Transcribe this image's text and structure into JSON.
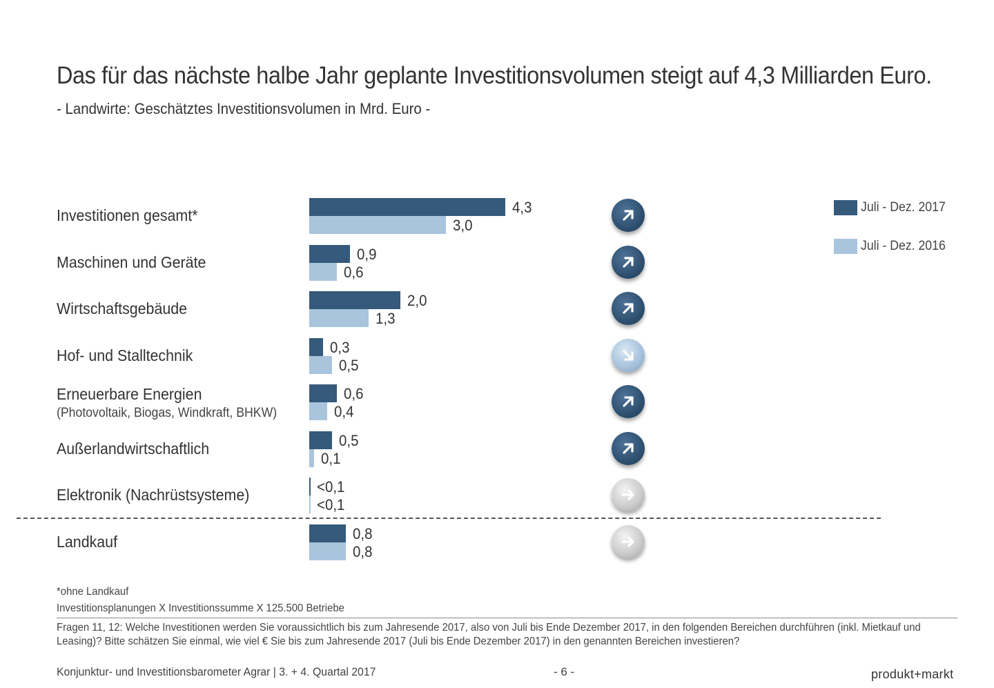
{
  "header": {
    "title": "Das für das nächste halbe Jahr geplante Investitionsvolumen steigt auf 4,3 Milliarden Euro.",
    "subtitle": "- Landwirte: Geschätztes Investitionsvolumen in Mrd. Euro -"
  },
  "chart_data": {
    "type": "bar",
    "orientation": "horizontal",
    "title": "Das für das nächste halbe Jahr geplante Investitionsvolumen steigt auf 4,3 Milliarden Euro.",
    "subtitle": "- Landwirte: Geschätztes Investitionsvolumen in Mrd. Euro -",
    "categories": [
      {
        "label": "Investitionen gesamt*",
        "sublabel": ""
      },
      {
        "label": "Maschinen und Geräte",
        "sublabel": ""
      },
      {
        "label": "Wirtschaftsgebäude",
        "sublabel": ""
      },
      {
        "label": "Hof- und Stalltechnik",
        "sublabel": ""
      },
      {
        "label": "Erneuerbare Energien",
        "sublabel": "(Photovoltaik, Biogas, Windkraft, BHKW)"
      },
      {
        "label": "Außerlandwirtschaftlich",
        "sublabel": ""
      },
      {
        "label": "Elektronik (Nachrüstsysteme)",
        "sublabel": ""
      },
      {
        "label": "Landkauf",
        "sublabel": ""
      }
    ],
    "series": [
      {
        "name": "Juli - Dez. 2017",
        "color": "#355a7b",
        "values": [
          4.3,
          0.9,
          2.0,
          0.3,
          0.6,
          0.5,
          0.05,
          0.8
        ],
        "labels": [
          "4,3",
          "0,9",
          "2,0",
          "0,3",
          "0,6",
          "0,5",
          "<0,1",
          "0,8"
        ]
      },
      {
        "name": "Juli - Dez. 2016",
        "color": "#a9c4dd",
        "values": [
          3.0,
          0.6,
          1.3,
          0.5,
          0.4,
          0.1,
          0.05,
          0.8
        ],
        "labels": [
          "3,0",
          "0,6",
          "1,3",
          "0,5",
          "0,4",
          "0,1",
          "<0,1",
          "0,8"
        ]
      }
    ],
    "trend_icons": [
      "arrow-up-right-icon",
      "arrow-up-right-icon",
      "arrow-up-right-icon",
      "arrow-down-right-icon",
      "arrow-up-right-icon",
      "arrow-up-right-icon",
      "arrow-right-icon",
      "arrow-right-icon"
    ],
    "xlim": [
      0,
      4.3
    ],
    "grid": false,
    "legend_position": "top-right"
  },
  "footnotes": {
    "note1": "*ohne Landkauf",
    "note2": "Investitionsplanungen X Investitionssumme X 125.500 Betriebe",
    "question": "Fragen 11, 12: Welche Investitionen werden Sie voraussichtlich bis zum Jahresende 2017, also von Juli bis Ende Dezember 2017, in den folgenden Bereichen durchführen (inkl. Mietkauf und Leasing)? Bitte schätzen Sie einmal, wie viel € Sie bis zum Jahresende 2017 (Juli bis Ende Dezember 2017) in den genannten Bereichen investieren?"
  },
  "footer": {
    "left": "Konjunktur- und Investitionsbarometer Agrar | 3. + 4. Quartal 2017",
    "page": "- 6 -",
    "brand": "produkt+markt"
  }
}
